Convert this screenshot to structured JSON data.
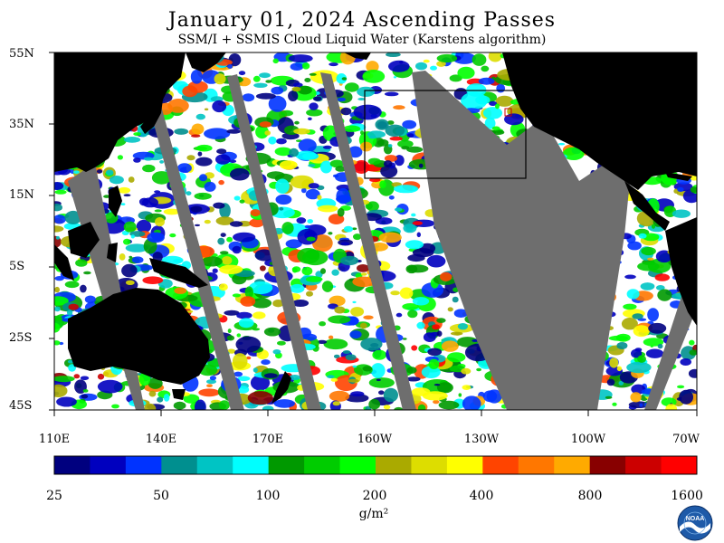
{
  "header": {
    "title": "January 01, 2024  Ascending Passes",
    "subtitle": "SSM/I + SSMIS Cloud Liquid Water (Karstens algorithm)"
  },
  "map": {
    "lat_labels": [
      "55N",
      "35N",
      "15N",
      "5S",
      "25S",
      "45S"
    ],
    "lon_labels": [
      "110E",
      "140E",
      "170E",
      "160W",
      "130W",
      "100W",
      "70W"
    ],
    "land_color": "#000000",
    "no_data_color": "#6e6e6e",
    "background_color": "#ffffff"
  },
  "colorbar": {
    "colors": [
      "#00007f",
      "#0000bf",
      "#0033ff",
      "#008f8f",
      "#00c4c4",
      "#00ffff",
      "#009900",
      "#00cc00",
      "#00ff00",
      "#aaaa00",
      "#dddd00",
      "#ffff00",
      "#ff4400",
      "#ff7700",
      "#ffaa00",
      "#880000",
      "#cc0000",
      "#ff0000"
    ],
    "tick_labels": [
      "25",
      "50",
      "100",
      "200",
      "400",
      "800",
      "1600"
    ],
    "unit": "g/m²"
  },
  "logo": {
    "text": "NOAA"
  }
}
